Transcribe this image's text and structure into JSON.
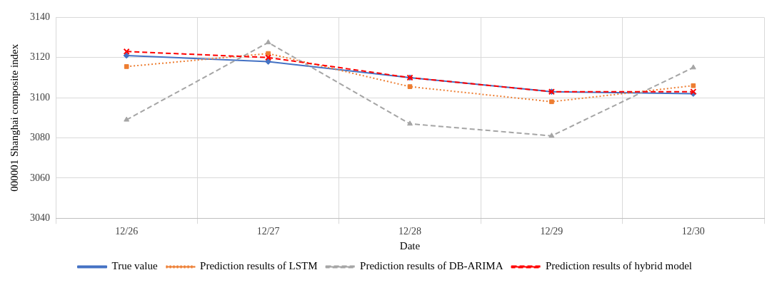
{
  "chart_data": {
    "type": "line",
    "xlabel": "Date",
    "ylabel": "000001 Shanghai composite index",
    "categories": [
      "12/26",
      "12/27",
      "12/28",
      "12/29",
      "12/30"
    ],
    "series": [
      {
        "name": "True value",
        "color": "#4472c4",
        "marker": "diamond",
        "line_style": "solid",
        "values": [
          3121,
          3118,
          3110,
          3103,
          3102
        ]
      },
      {
        "name": "Prediction results of LSTM",
        "color": "#ed7d31",
        "marker": "square",
        "line_style": "dotted",
        "values": [
          3115.5,
          3122,
          3105.5,
          3098,
          3106
        ]
      },
      {
        "name": "Prediction results of DB-ARIMA",
        "color": "#a5a5a5",
        "marker": "triangle",
        "line_style": "dashed",
        "values": [
          3089,
          3127.5,
          3087,
          3081,
          3115
        ]
      },
      {
        "name": "Prediction results of hybrid model",
        "color": "#ff0000",
        "marker": "cross",
        "line_style": "dashed",
        "values": [
          3123,
          3120,
          3110,
          3103,
          3103
        ]
      }
    ],
    "ylim": [
      3040,
      3140
    ],
    "yticks": [
      3040,
      3060,
      3080,
      3100,
      3120,
      3140
    ],
    "grid": true,
    "legend": "bottom"
  }
}
